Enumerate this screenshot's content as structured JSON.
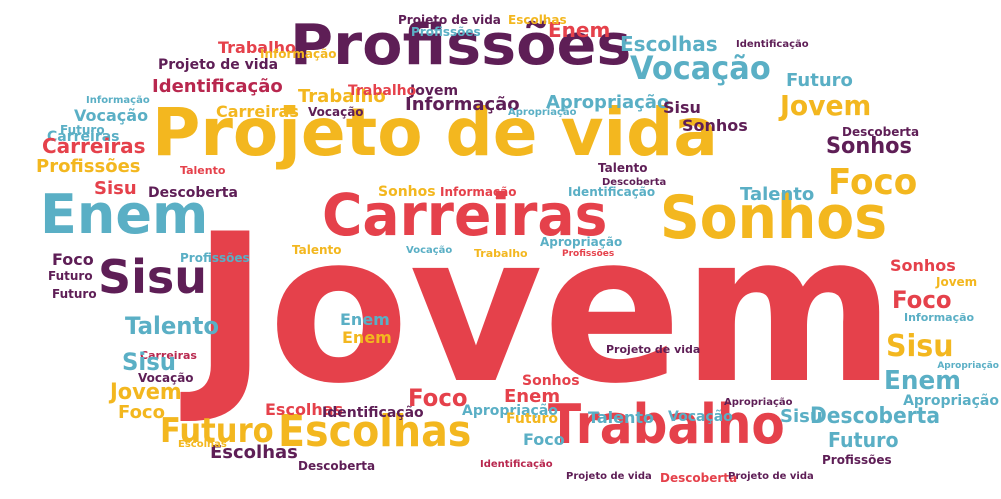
{
  "palette": {
    "red": "#E5414B",
    "yellow": "#F3B71F",
    "purple": "#5E1E56",
    "teal": "#5AAFC5",
    "magenta": "#B8274E"
  },
  "words": [
    {
      "text": "Jovem",
      "color": "red"
    },
    {
      "text": "Projeto de vida",
      "color": "yellow"
    },
    {
      "text": "Profissões",
      "color": "purple"
    },
    {
      "text": "Carreiras",
      "color": "red"
    },
    {
      "text": "Sonhos",
      "color": "yellow"
    },
    {
      "text": "Enem",
      "color": "teal"
    },
    {
      "text": "Sisu",
      "color": "purple"
    },
    {
      "text": "Trabalho",
      "color": "red"
    },
    {
      "text": "Escolhas",
      "color": "yellow"
    },
    {
      "text": "Vocação",
      "color": "teal"
    },
    {
      "text": "Foco",
      "color": "yellow"
    },
    {
      "text": "Futuro",
      "color": "yellow"
    },
    {
      "text": "Talento",
      "color": "teal"
    },
    {
      "text": "Identificação",
      "color": "magenta"
    },
    {
      "text": "Jovem",
      "color": "yellow"
    },
    {
      "text": "Apropriação",
      "color": "teal"
    },
    {
      "text": "Informação",
      "color": "purple"
    },
    {
      "text": "Sonhos",
      "color": "purple"
    },
    {
      "text": "Escolhas",
      "color": "teal"
    },
    {
      "text": "Enem",
      "color": "red"
    },
    {
      "text": "Trabalho",
      "color": "yellow"
    },
    {
      "text": "Carreiras",
      "color": "yellow"
    },
    {
      "text": "Projeto de vida",
      "color": "purple"
    },
    {
      "text": "Trabalho",
      "color": "red"
    },
    {
      "text": "Futuro",
      "color": "teal"
    },
    {
      "text": "Sisu",
      "color": "purple"
    },
    {
      "text": "Vocação",
      "color": "purple"
    },
    {
      "text": "Jovem",
      "color": "purple"
    },
    {
      "text": "Trabalho",
      "color": "red"
    },
    {
      "text": "Carreiras",
      "color": "teal"
    },
    {
      "text": "Projeto de vida",
      "color": "purple"
    },
    {
      "text": "Escolhas",
      "color": "yellow"
    },
    {
      "text": "Profissões",
      "color": "teal"
    },
    {
      "text": "Informação",
      "color": "yellow"
    },
    {
      "text": "Identificação",
      "color": "purple"
    },
    {
      "text": "Informação",
      "color": "teal"
    },
    {
      "text": "Vocação",
      "color": "teal"
    },
    {
      "text": "Futuro",
      "color": "teal"
    },
    {
      "text": "Carreiras",
      "color": "red"
    },
    {
      "text": "Profissões",
      "color": "yellow"
    },
    {
      "text": "Sisu",
      "color": "red"
    },
    {
      "text": "Talento",
      "color": "red"
    },
    {
      "text": "Descoberta",
      "color": "purple"
    },
    {
      "text": "Apropriação",
      "color": "teal"
    },
    {
      "text": "Sonhos",
      "color": "purple"
    },
    {
      "text": "Descoberta",
      "color": "purple"
    },
    {
      "text": "Talento",
      "color": "purple"
    },
    {
      "text": "Descoberta",
      "color": "purple"
    },
    {
      "text": "Sonhos",
      "color": "yellow"
    },
    {
      "text": "Informação",
      "color": "red"
    },
    {
      "text": "Identificação",
      "color": "teal"
    },
    {
      "text": "Talento",
      "color": "teal"
    },
    {
      "text": "Apropriação",
      "color": "teal"
    },
    {
      "text": "Foco",
      "color": "purple"
    },
    {
      "text": "Futuro",
      "color": "purple"
    },
    {
      "text": "Profissões",
      "color": "teal"
    },
    {
      "text": "Talento",
      "color": "yellow"
    },
    {
      "text": "Vocação",
      "color": "teal"
    },
    {
      "text": "Trabalho",
      "color": "yellow"
    },
    {
      "text": "Profissões",
      "color": "red"
    },
    {
      "text": "Futuro",
      "color": "purple"
    },
    {
      "text": "Sonhos",
      "color": "red"
    },
    {
      "text": "Jovem",
      "color": "yellow"
    },
    {
      "text": "Foco",
      "color": "red"
    },
    {
      "text": "Informação",
      "color": "teal"
    },
    {
      "text": "Enem",
      "color": "teal"
    },
    {
      "text": "Sisu",
      "color": "yellow"
    },
    {
      "text": "Enem",
      "color": "yellow"
    },
    {
      "text": "Carreiras",
      "color": "magenta"
    },
    {
      "text": "Projeto de vida",
      "color": "purple"
    },
    {
      "text": "Enem",
      "color": "teal"
    },
    {
      "text": "Apropriação",
      "color": "teal"
    },
    {
      "text": "Sisu",
      "color": "teal"
    },
    {
      "text": "Vocação",
      "color": "purple"
    },
    {
      "text": "Sonhos",
      "color": "red"
    },
    {
      "text": "Jovem",
      "color": "yellow"
    },
    {
      "text": "Foco",
      "color": "yellow"
    },
    {
      "text": "Enem",
      "color": "red"
    },
    {
      "text": "Apropriação",
      "color": "teal"
    },
    {
      "text": "Apropriação",
      "color": "teal"
    },
    {
      "text": "Escolhas",
      "color": "red"
    },
    {
      "text": "Identificação",
      "color": "purple"
    },
    {
      "text": "Foco",
      "color": "red"
    },
    {
      "text": "Talento",
      "color": "teal"
    },
    {
      "text": "Vocação",
      "color": "teal"
    },
    {
      "text": "Sisu",
      "color": "teal"
    },
    {
      "text": "Descoberta",
      "color": "teal"
    },
    {
      "text": "Apropriação",
      "color": "purple"
    },
    {
      "text": "Futuro",
      "color": "yellow"
    },
    {
      "text": "Foco",
      "color": "teal"
    },
    {
      "text": "Escolhas",
      "color": "purple"
    },
    {
      "text": "Futuro",
      "color": "teal"
    },
    {
      "text": "Escolhas",
      "color": "yellow"
    },
    {
      "text": "Descoberta",
      "color": "purple"
    },
    {
      "text": "Profissões",
      "color": "purple"
    },
    {
      "text": "Identificação",
      "color": "magenta"
    },
    {
      "text": "Projeto de vida",
      "color": "purple"
    },
    {
      "text": "Descoberta",
      "color": "red"
    },
    {
      "text": "Projeto de vida",
      "color": "purple"
    }
  ]
}
